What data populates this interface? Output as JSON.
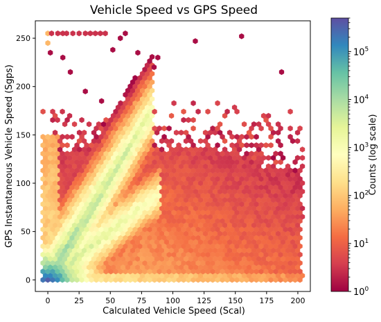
{
  "chart_data": {
    "type": "heatmap",
    "subtype": "hexbin",
    "title": "Vehicle Speed vs GPS Speed",
    "xlabel": "Calculated Vehicle Speed (Scal)",
    "ylabel": "GPS Instantaneous Vehicle Speed (Sgps)",
    "xlim": [
      -10,
      210
    ],
    "ylim": [
      -12,
      268
    ],
    "x_ticks": [
      0,
      25,
      50,
      75,
      100,
      125,
      150,
      175,
      200
    ],
    "y_ticks": [
      0,
      50,
      100,
      150,
      200,
      250
    ],
    "grid": false,
    "colormap": "Spectral",
    "colorbar": {
      "label": "Counts (log scale)",
      "scale": "log",
      "range": [
        1,
        500000
      ],
      "ticks": [
        {
          "base": "10",
          "exp": "0"
        },
        {
          "base": "10",
          "exp": "1"
        },
        {
          "base": "10",
          "exp": "2"
        },
        {
          "base": "10",
          "exp": "3"
        },
        {
          "base": "10",
          "exp": "4"
        },
        {
          "base": "10",
          "exp": "5"
        }
      ]
    },
    "features": [
      {
        "description": "main diagonal ridge",
        "x": [
          0,
          80
        ],
        "y": [
          0,
          170
        ],
        "peak_count": 30000
      },
      {
        "description": "identity ridge",
        "x": [
          0,
          85
        ],
        "y": [
          0,
          85
        ],
        "peak_count": 20000
      },
      {
        "description": "densest region near origin",
        "x": [
          2,
          20
        ],
        "y": [
          0,
          15
        ],
        "peak_count": 500000
      },
      {
        "description": "saturation row",
        "y": 255,
        "x": [
          0,
          60
        ],
        "count": 1
      }
    ]
  }
}
